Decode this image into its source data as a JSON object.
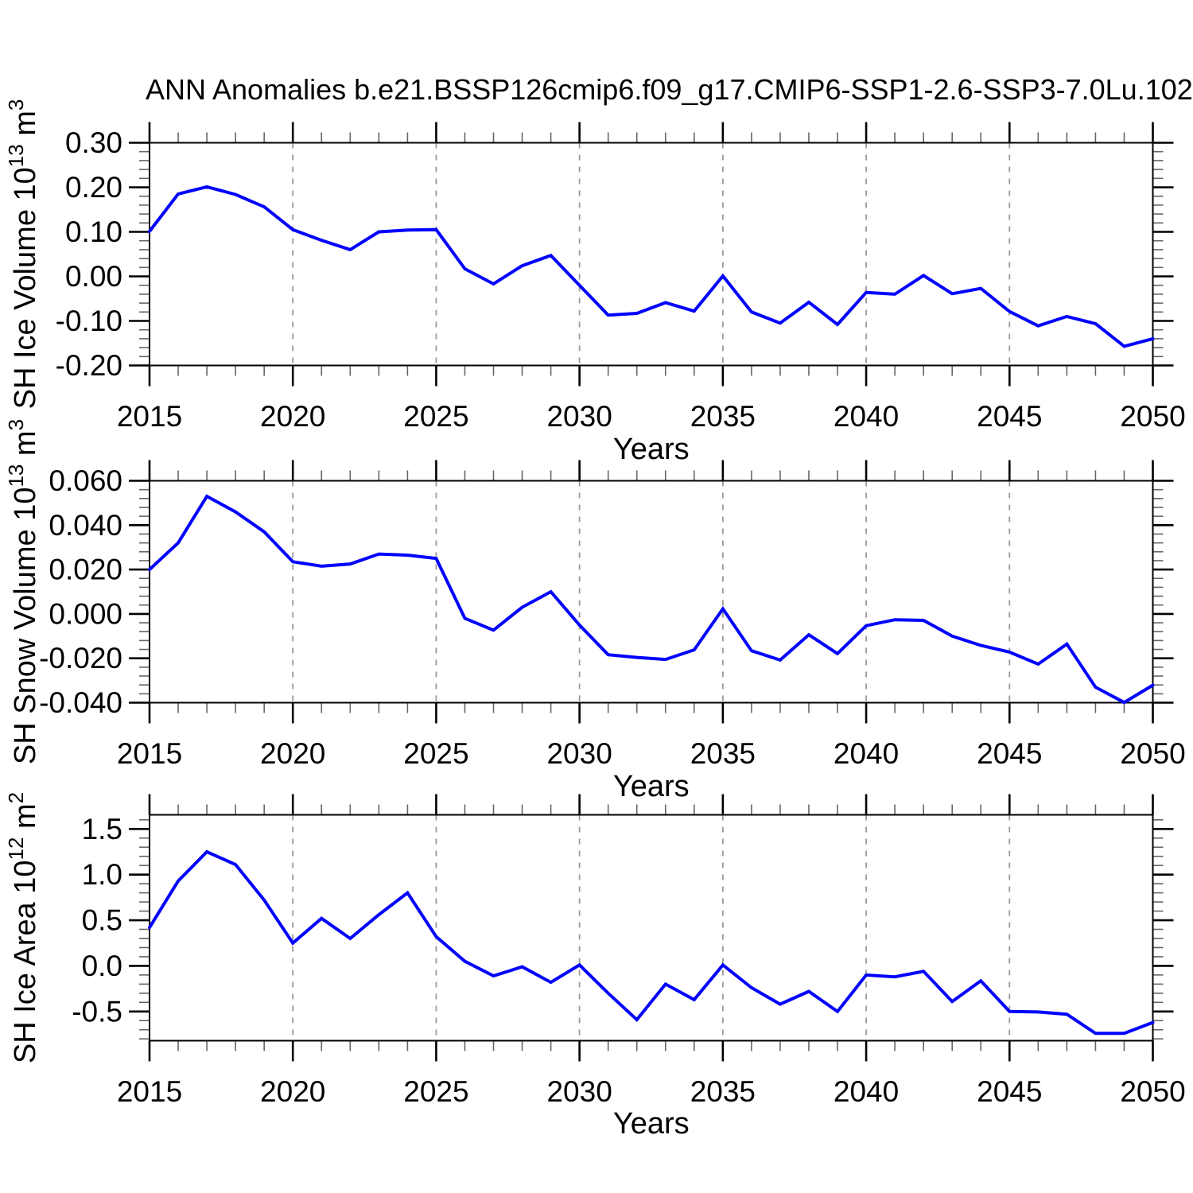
{
  "title": "ANN Anomalies b.e21.BSSP126cmip6.f09_g17.CMIP6-SSP1-2.6-SSP3-7.0Lu.102",
  "x_axis_label": "Years",
  "line_color": "#0000ff",
  "gridline_color": "#999999",
  "chart_data": [
    {
      "type": "line",
      "id": "sh-ice-volume",
      "ylabel": {
        "prefix": "SH Ice Volume 10",
        "exp": "13",
        "mid": " m",
        "exp2": "3"
      },
      "years": [
        2015,
        2016,
        2017,
        2018,
        2019,
        2020,
        2021,
        2022,
        2023,
        2024,
        2025,
        2026,
        2027,
        2028,
        2029,
        2030,
        2031,
        2032,
        2033,
        2034,
        2035,
        2036,
        2037,
        2038,
        2039,
        2040,
        2041,
        2042,
        2043,
        2044,
        2045,
        2046,
        2047,
        2048,
        2049,
        2050
      ],
      "values": [
        0.101,
        0.185,
        0.201,
        0.184,
        0.156,
        0.105,
        0.081,
        0.06,
        0.1,
        0.104,
        0.105,
        0.017,
        -0.017,
        0.024,
        0.047,
        -0.02,
        -0.087,
        -0.083,
        -0.059,
        -0.078,
        0.001,
        -0.08,
        -0.105,
        -0.058,
        -0.108,
        -0.036,
        -0.04,
        0.002,
        -0.039,
        -0.027,
        -0.079,
        -0.111,
        -0.09,
        -0.106,
        -0.157,
        -0.14
      ],
      "ylim": [
        -0.2,
        0.3
      ],
      "frame_vmax": 0.3,
      "frame_vmin": -0.2,
      "y_major_ticks": [
        {
          "v": 0.3,
          "label": "0.30"
        },
        {
          "v": 0.2,
          "label": "0.20"
        },
        {
          "v": 0.1,
          "label": "0.10"
        },
        {
          "v": 0.0,
          "label": "0.00"
        },
        {
          "v": -0.1,
          "label": "-0.10"
        },
        {
          "v": -0.2,
          "label": "-0.20"
        }
      ],
      "y_minor_step": 0.02,
      "gridline_years": [
        2020,
        2025,
        2030,
        2035,
        2040,
        2045
      ],
      "x_tick_labels": [
        "2015",
        "2020",
        "2025",
        "2030",
        "2035",
        "2040",
        "2045",
        "2050"
      ]
    },
    {
      "type": "line",
      "id": "sh-snow-volume",
      "ylabel": {
        "prefix": "SH Snow Volume 10",
        "exp": "13",
        "mid": " m",
        "exp2": "3"
      },
      "years": [
        2015,
        2016,
        2017,
        2018,
        2019,
        2020,
        2021,
        2022,
        2023,
        2024,
        2025,
        2026,
        2027,
        2028,
        2029,
        2030,
        2031,
        2032,
        2033,
        2034,
        2035,
        2036,
        2037,
        2038,
        2039,
        2040,
        2041,
        2042,
        2043,
        2044,
        2045,
        2046,
        2047,
        2048,
        2049,
        2050
      ],
      "values": [
        0.02,
        0.032,
        0.053,
        0.046,
        0.037,
        0.0235,
        0.0215,
        0.0225,
        0.027,
        0.0265,
        0.025,
        -0.002,
        -0.0073,
        0.003,
        0.01,
        -0.005,
        -0.0184,
        -0.0196,
        -0.0205,
        -0.0162,
        0.0023,
        -0.0166,
        -0.0208,
        -0.0094,
        -0.0179,
        -0.0053,
        -0.0026,
        -0.0029,
        -0.01,
        -0.0142,
        -0.0172,
        -0.0226,
        -0.0136,
        -0.033,
        -0.0399,
        -0.0321
      ],
      "ylim": [
        -0.04,
        0.06
      ],
      "frame_vmax": 0.06,
      "frame_vmin": -0.04,
      "y_major_ticks": [
        {
          "v": 0.06,
          "label": "0.060"
        },
        {
          "v": 0.04,
          "label": "0.040"
        },
        {
          "v": 0.02,
          "label": "0.020"
        },
        {
          "v": 0.0,
          "label": "0.000"
        },
        {
          "v": -0.02,
          "label": "-0.020"
        },
        {
          "v": -0.04,
          "label": "-0.040"
        }
      ],
      "y_minor_step": 0.004,
      "gridline_years": [
        2020,
        2025,
        2030,
        2035,
        2040,
        2045
      ],
      "x_tick_labels": [
        "2015",
        "2020",
        "2025",
        "2030",
        "2035",
        "2040",
        "2045",
        "2050"
      ]
    },
    {
      "type": "line",
      "id": "sh-ice-area",
      "ylabel": {
        "prefix": "SH Ice Area 10",
        "exp": "12",
        "mid": " m",
        "exp2": "2"
      },
      "years": [
        2015,
        2016,
        2017,
        2018,
        2019,
        2020,
        2021,
        2022,
        2023,
        2024,
        2025,
        2026,
        2027,
        2028,
        2029,
        2030,
        2031,
        2032,
        2033,
        2034,
        2035,
        2036,
        2037,
        2038,
        2039,
        2040,
        2041,
        2042,
        2043,
        2044,
        2045,
        2046,
        2047,
        2048,
        2049,
        2050
      ],
      "values": [
        0.42,
        0.93,
        1.25,
        1.11,
        0.72,
        0.25,
        0.52,
        0.3,
        0.56,
        0.8,
        0.32,
        0.05,
        -0.11,
        -0.01,
        -0.18,
        0.01,
        -0.3,
        -0.59,
        -0.2,
        -0.37,
        0.01,
        -0.24,
        -0.42,
        -0.28,
        -0.5,
        -0.1,
        -0.12,
        -0.06,
        -0.39,
        -0.165,
        -0.5,
        -0.505,
        -0.53,
        -0.74,
        -0.74,
        -0.62
      ],
      "ylim": [
        -0.5,
        1.5
      ],
      "frame_vmax": 1.655,
      "frame_vmin": -0.82,
      "y_major_ticks": [
        {
          "v": 1.5,
          "label": "1.5"
        },
        {
          "v": 1.0,
          "label": "1.0"
        },
        {
          "v": 0.5,
          "label": "0.5"
        },
        {
          "v": 0.0,
          "label": "0.0"
        },
        {
          "v": -0.5,
          "label": "-0.5"
        }
      ],
      "y_minor_step": 0.1,
      "gridline_years": [
        2020,
        2025,
        2030,
        2035,
        2040,
        2045
      ],
      "x_tick_labels": [
        "2015",
        "2020",
        "2025",
        "2030",
        "2035",
        "2040",
        "2045",
        "2050"
      ]
    }
  ]
}
